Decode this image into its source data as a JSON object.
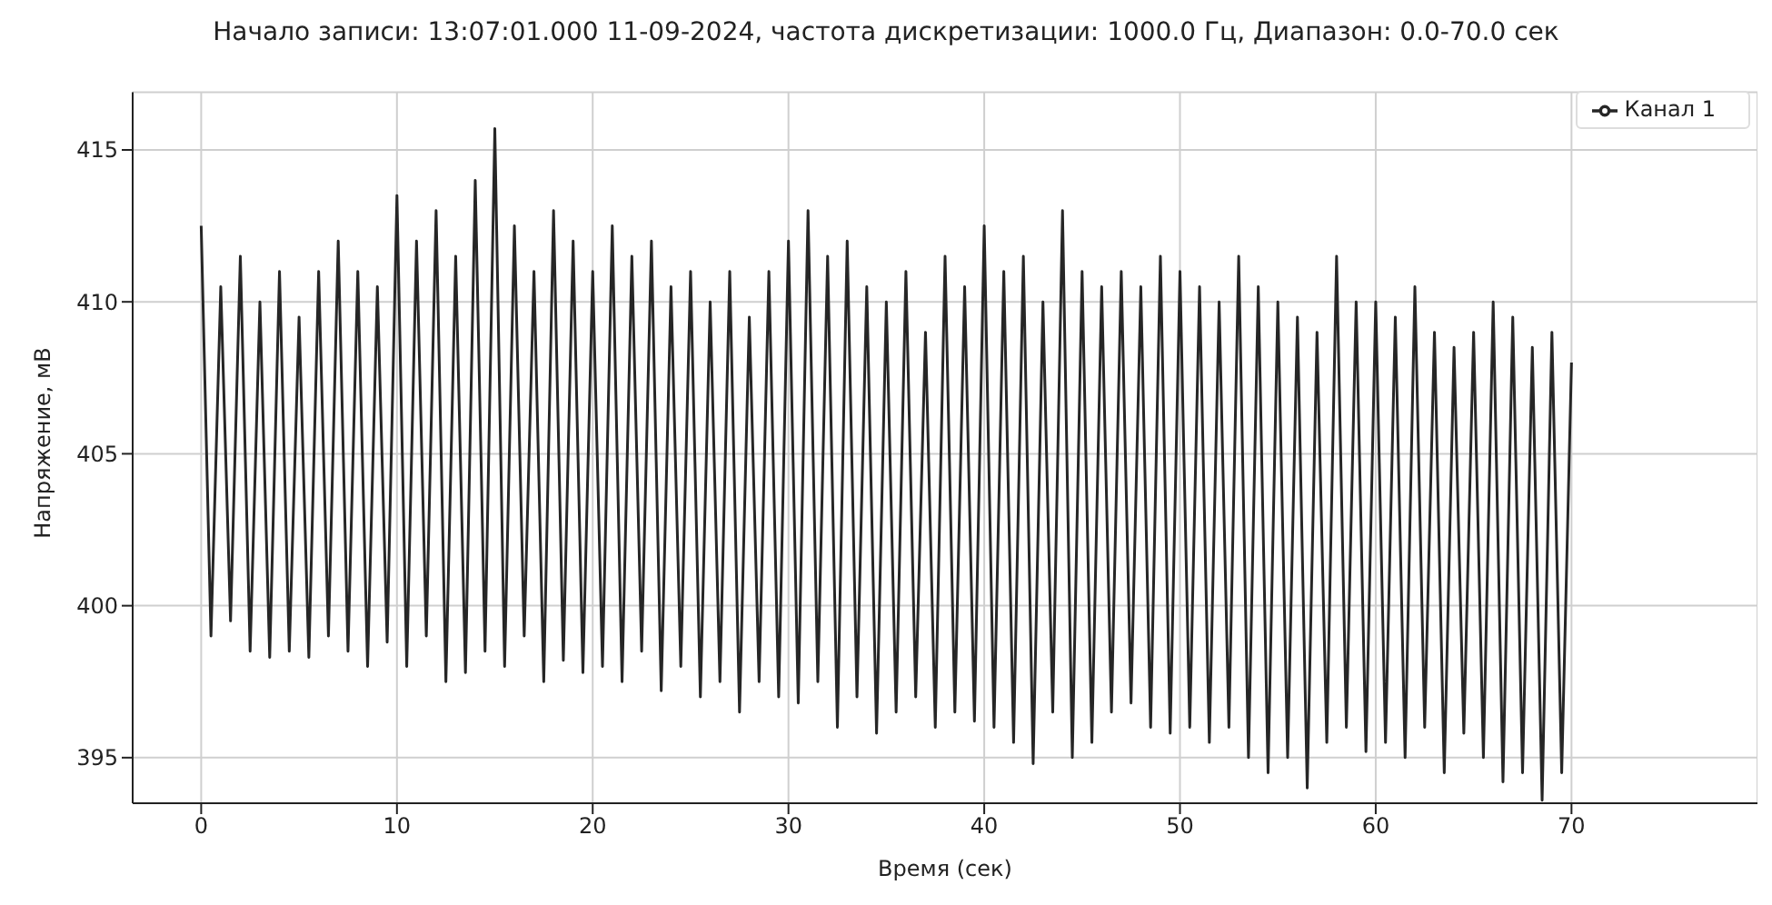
{
  "chart_data": {
    "type": "line",
    "title": "Начало записи: 13:07:01.000 11-09-2024, частота дискретизации: 1000.0 Гц, Диапазон: 0.0-70.0 сек",
    "xlabel": "Время (сек)",
    "ylabel": "Напряжение, мВ",
    "x": [
      0,
      0.5,
      1,
      1.5,
      2,
      2.5,
      3,
      3.5,
      4,
      4.5,
      5,
      5.5,
      6,
      6.5,
      7,
      7.5,
      8,
      8.5,
      9,
      9.5,
      10,
      10.5,
      11,
      11.5,
      12,
      12.5,
      13,
      13.5,
      14,
      14.5,
      15,
      15.5,
      16,
      16.5,
      17,
      17.5,
      18,
      18.5,
      19,
      19.5,
      20,
      20.5,
      21,
      21.5,
      22,
      22.5,
      23,
      23.5,
      24,
      24.5,
      25,
      25.5,
      26,
      26.5,
      27,
      27.5,
      28,
      28.5,
      29,
      29.5,
      30,
      30.5,
      31,
      31.5,
      32,
      32.5,
      33,
      33.5,
      34,
      34.5,
      35,
      35.5,
      36,
      36.5,
      37,
      37.5,
      38,
      38.5,
      39,
      39.5,
      40,
      40.5,
      41,
      41.5,
      42,
      42.5,
      43,
      43.5,
      44,
      44.5,
      45,
      45.5,
      46,
      46.5,
      47,
      47.5,
      48,
      48.5,
      49,
      49.5,
      50,
      50.5,
      51,
      51.5,
      52,
      52.5,
      53,
      53.5,
      54,
      54.5,
      55,
      55.5,
      56,
      56.5,
      57,
      57.5,
      58,
      58.5,
      59,
      59.5,
      60,
      60.5,
      61,
      61.5,
      62,
      62.5,
      63,
      63.5,
      64,
      64.5,
      65,
      65.5,
      66,
      66.5,
      67,
      67.5,
      68,
      68.5,
      69,
      69.5,
      70
    ],
    "series": [
      {
        "name": "Канал 1",
        "color": "#262626",
        "values": [
          412.5,
          399,
          410.5,
          399.5,
          411.5,
          398.5,
          410,
          398.3,
          411,
          398.5,
          409.5,
          398.3,
          411,
          399,
          412,
          398.5,
          411,
          398,
          410.5,
          398.8,
          413.5,
          398,
          412,
          399,
          413,
          397.5,
          411.5,
          397.8,
          414,
          398.5,
          415.7,
          398,
          412.5,
          399,
          411,
          397.5,
          413,
          398.2,
          412,
          397.8,
          411,
          398,
          412.5,
          397.5,
          411.5,
          398.5,
          412,
          397.2,
          410.5,
          398,
          411,
          397,
          410,
          397.5,
          411,
          396.5,
          409.5,
          397.5,
          411,
          397,
          412,
          396.8,
          413,
          397.5,
          411.5,
          396,
          412,
          397,
          410.5,
          395.8,
          410,
          396.5,
          411,
          397,
          409,
          396,
          411.5,
          396.5,
          410.5,
          396.2,
          412.5,
          396,
          411,
          395.5,
          411.5,
          394.8,
          410,
          396.5,
          413,
          395,
          411,
          395.5,
          410.5,
          396.5,
          411,
          396.8,
          410.5,
          396,
          411.5,
          395.8,
          411,
          396,
          410.5,
          395.5,
          410,
          396,
          411.5,
          395,
          410.5,
          394.5,
          410,
          395,
          409.5,
          394,
          409,
          395.5,
          411.5,
          396,
          410,
          395.2,
          410,
          395.5,
          409.5,
          395,
          410.5,
          396,
          409,
          394.5,
          408.5,
          395.8,
          409,
          395,
          410,
          394.2,
          409.5,
          394.5,
          408.5,
          393.6,
          409,
          394.5,
          408
        ]
      }
    ],
    "xlim": [
      -3.5,
      79.5
    ],
    "xticks": [
      0,
      10,
      20,
      30,
      40,
      50,
      60,
      70
    ],
    "ylim": [
      393.5,
      416.9
    ],
    "yticks": [
      395,
      400,
      405,
      410,
      415
    ],
    "grid": true,
    "legend": "top right",
    "marker": "none",
    "line_style": "solid"
  }
}
